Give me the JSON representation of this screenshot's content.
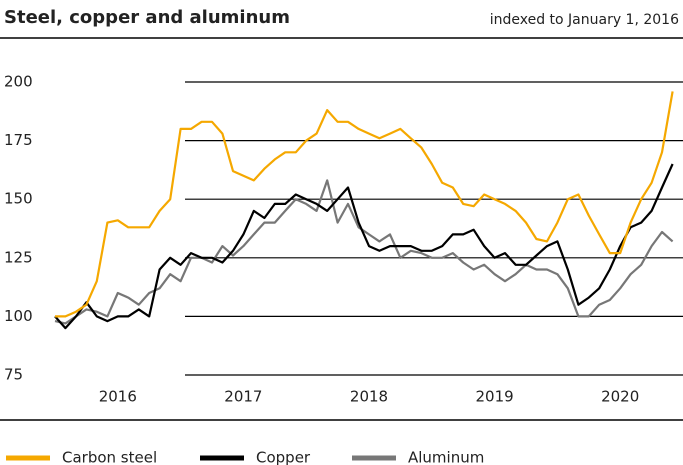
{
  "chart_data": {
    "type": "line",
    "title": "Steel, copper and aluminum",
    "subtitle": "indexed to January 1, 2016",
    "x": [
      2016,
      2016.083,
      2016.167,
      2016.25,
      2016.333,
      2016.417,
      2016.5,
      2016.583,
      2016.667,
      2016.75,
      2016.833,
      2016.917,
      2017,
      2017.083,
      2017.167,
      2017.25,
      2017.333,
      2017.417,
      2017.5,
      2017.583,
      2017.667,
      2017.75,
      2017.833,
      2017.917,
      2018,
      2018.083,
      2018.167,
      2018.25,
      2018.333,
      2018.417,
      2018.5,
      2018.583,
      2018.667,
      2018.75,
      2018.833,
      2018.917,
      2019,
      2019.083,
      2019.167,
      2019.25,
      2019.333,
      2019.417,
      2019.5,
      2019.583,
      2019.667,
      2019.75,
      2019.833,
      2019.917,
      2020,
      2020.083,
      2020.167,
      2020.25,
      2020.333,
      2020.417,
      2020.5,
      2020.583,
      2020.667,
      2020.75,
      2020.833,
      2020.917
    ],
    "series": [
      {
        "name": "Carbon steel",
        "color": "#f5a800",
        "values": [
          100,
          100,
          102,
          105,
          115,
          140,
          141,
          138,
          138,
          138,
          145,
          150,
          180,
          180,
          183,
          183,
          178,
          162,
          160,
          158,
          163,
          167,
          170,
          170,
          175,
          178,
          188,
          183,
          183,
          180,
          178,
          176,
          178,
          180,
          176,
          172,
          165,
          157,
          155,
          148,
          147,
          152,
          150,
          148,
          145,
          140,
          133,
          132,
          140,
          150,
          152,
          143,
          135,
          127,
          127,
          140,
          150,
          157,
          170,
          196
        ]
      },
      {
        "name": "Copper",
        "color": "#000000",
        "values": [
          100,
          95,
          100,
          106,
          100,
          98,
          100,
          100,
          103,
          100,
          120,
          125,
          122,
          127,
          125,
          125,
          123,
          128,
          135,
          145,
          142,
          148,
          148,
          152,
          150,
          148,
          145,
          150,
          155,
          140,
          130,
          128,
          130,
          130,
          130,
          128,
          128,
          130,
          135,
          135,
          137,
          130,
          125,
          127,
          122,
          122,
          126,
          130,
          132,
          120,
          105,
          108,
          112,
          120,
          130,
          138,
          140,
          145,
          155,
          165
        ]
      },
      {
        "name": "Aluminum",
        "color": "#777777",
        "values": [
          98,
          97,
          100,
          103,
          102,
          100,
          110,
          108,
          105,
          110,
          112,
          118,
          115,
          125,
          125,
          123,
          130,
          126,
          130,
          135,
          140,
          140,
          145,
          150,
          148,
          145,
          158,
          140,
          148,
          138,
          135,
          132,
          135,
          125,
          128,
          127,
          125,
          125,
          127,
          123,
          120,
          122,
          118,
          115,
          118,
          122,
          120,
          120,
          118,
          112,
          100,
          100,
          105,
          107,
          112,
          118,
          122,
          130,
          136,
          132
        ]
      }
    ],
    "xlim": [
      2016,
      2021
    ],
    "xticks": [
      {
        "value": 2016.5,
        "label": "2016"
      },
      {
        "value": 2017.5,
        "label": "2017"
      },
      {
        "value": 2018.5,
        "label": "2018"
      },
      {
        "value": 2019.5,
        "label": "2019"
      },
      {
        "value": 2020.5,
        "label": "2020"
      }
    ],
    "ylim": [
      75,
      200
    ],
    "yticks": [
      75,
      100,
      125,
      150,
      175,
      200
    ],
    "grid": true
  }
}
